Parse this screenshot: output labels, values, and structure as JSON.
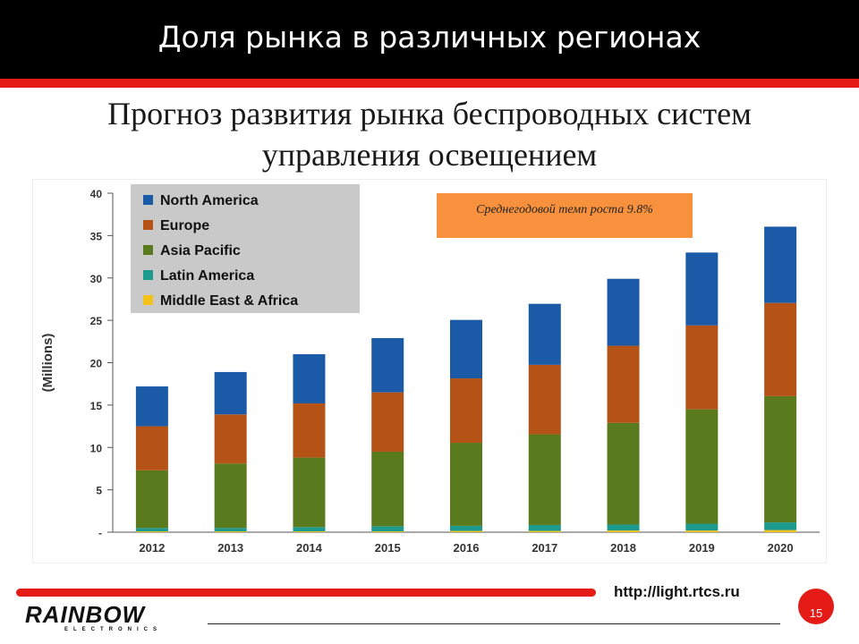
{
  "slide": {
    "title": "Доля рынка в различных регионах",
    "subtitle": "Прогноз развития рынка беспроводных систем управления освещением",
    "url": "http://light.rtcs.ru",
    "logo_text": "RAINBOW",
    "logo_sub": "ELECTRONICS",
    "page_number": "15",
    "colors": {
      "title_bar": "#000000",
      "accent_red": "#e41b17",
      "callout": "#f7913d"
    }
  },
  "chart_data": {
    "type": "bar",
    "stacked": true,
    "title": "",
    "xlabel": "",
    "ylabel": "(Millions)",
    "ylim": [
      0,
      40
    ],
    "yticks": [
      0,
      5,
      10,
      15,
      20,
      25,
      30,
      35,
      40
    ],
    "ytick_labels": [
      "-",
      "5",
      "10",
      "15",
      "20",
      "25",
      "30",
      "35",
      "40"
    ],
    "categories": [
      "2012",
      "2013",
      "2014",
      "2015",
      "2016",
      "2017",
      "2018",
      "2019",
      "2020"
    ],
    "series": [
      {
        "name": "Middle East & Africa",
        "color": "#f2c218",
        "values": [
          0.1,
          0.1,
          0.1,
          0.1,
          0.15,
          0.15,
          0.2,
          0.2,
          0.25
        ]
      },
      {
        "name": "Latin America",
        "color": "#1d9a8e",
        "values": [
          0.4,
          0.4,
          0.5,
          0.6,
          0.6,
          0.7,
          0.7,
          0.8,
          0.9
        ]
      },
      {
        "name": "Asia Pacific",
        "color": "#5a7a1e",
        "values": [
          6.8,
          7.6,
          8.2,
          8.8,
          9.8,
          10.7,
          12.0,
          13.5,
          14.9
        ]
      },
      {
        "name": "Europe",
        "color": "#b55317",
        "values": [
          5.2,
          5.8,
          6.4,
          7.0,
          7.6,
          8.2,
          9.1,
          9.9,
          11.0
        ]
      },
      {
        "name": "North America",
        "color": "#1b5aa6",
        "values": [
          4.7,
          5.0,
          5.8,
          6.4,
          6.9,
          7.2,
          7.9,
          8.6,
          9.0
        ]
      }
    ],
    "legend": {
      "position": "top-left",
      "order": [
        "North America",
        "Europe",
        "Asia Pacific",
        "Latin America",
        "Middle East & Africa"
      ]
    },
    "annotation": {
      "text": "Среднегодовой темп роста 9.8%",
      "position": "top-center"
    },
    "grid": false
  }
}
